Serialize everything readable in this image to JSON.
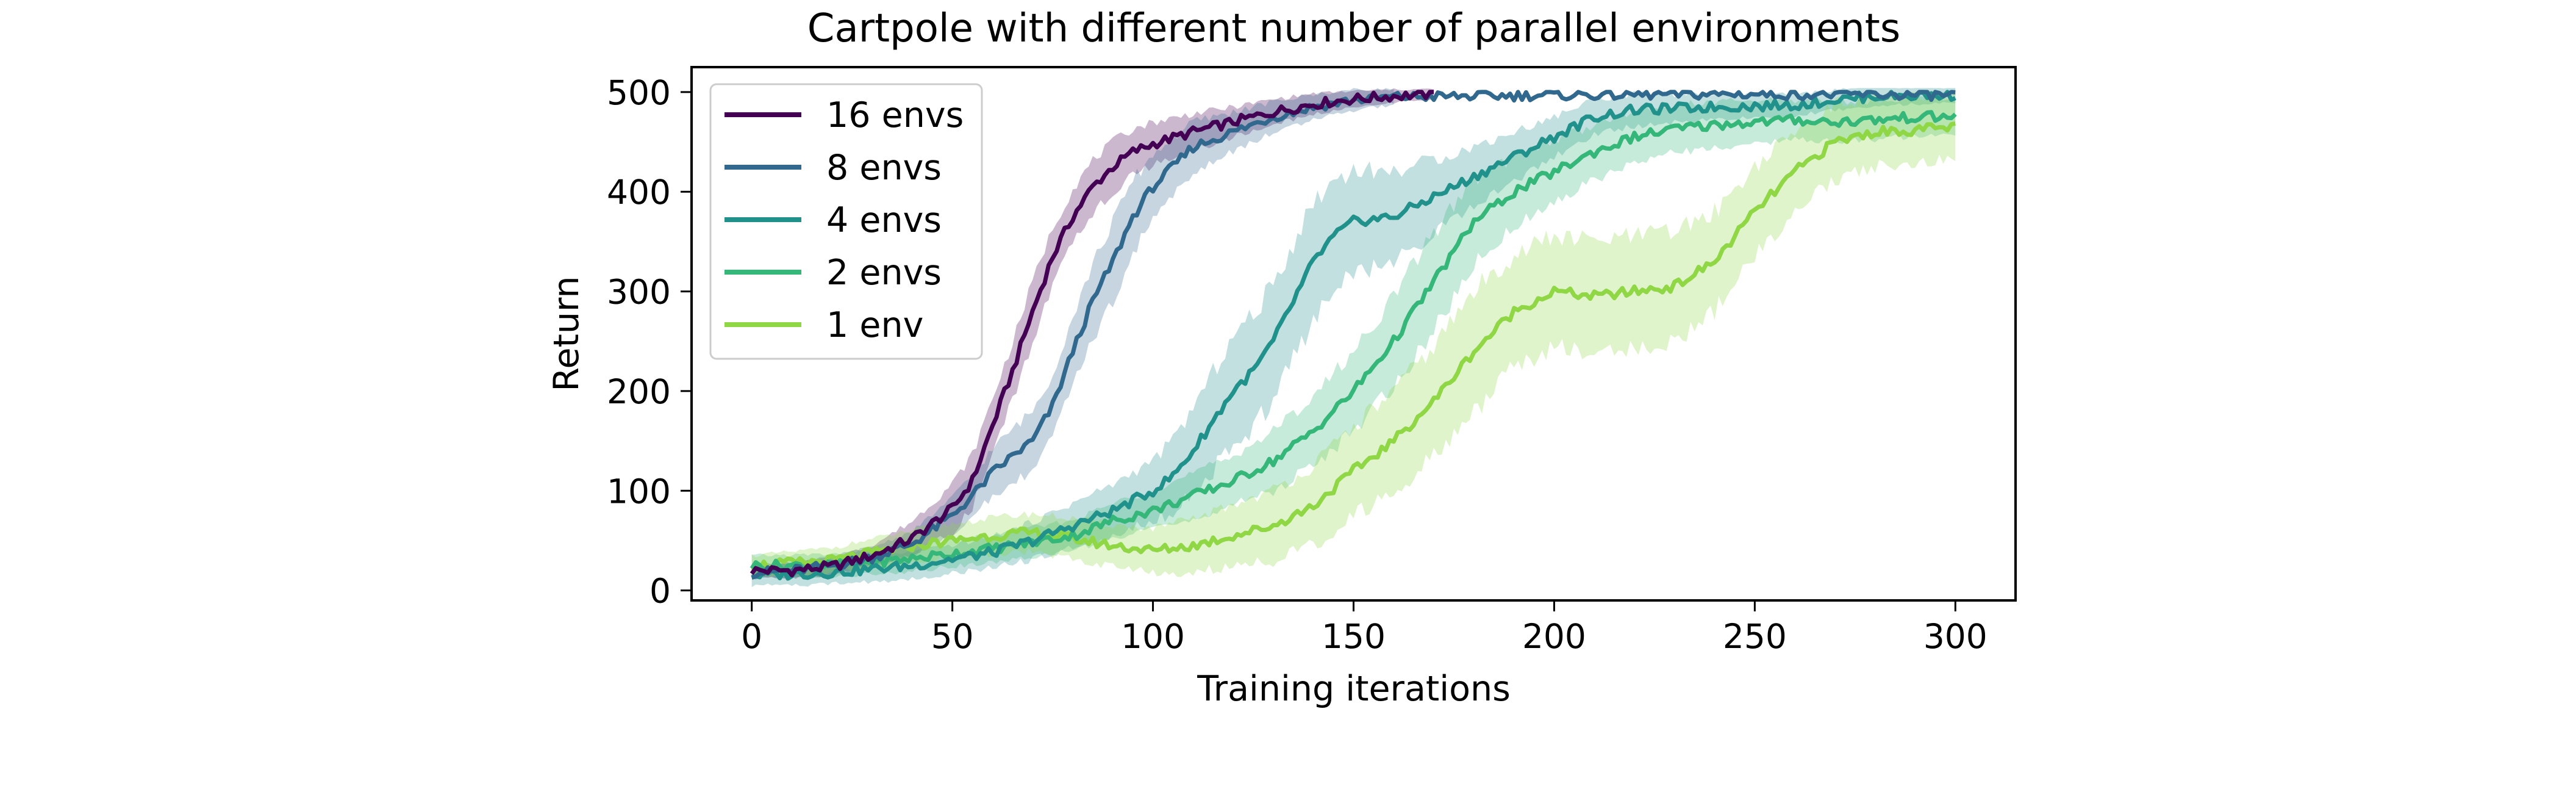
{
  "chart_data": {
    "type": "line",
    "title": "Cartpole with different number of parallel environments",
    "xlabel": "Training iterations",
    "ylabel": "Return",
    "xlim": [
      -15,
      315
    ],
    "ylim": [
      -10,
      525
    ],
    "xticks": [
      0,
      50,
      100,
      150,
      200,
      250,
      300
    ],
    "yticks": [
      0,
      100,
      200,
      300,
      400,
      500
    ],
    "grid": false,
    "legend_position": "upper-left",
    "series": [
      {
        "name": "16 envs",
        "color": "#440154",
        "band": true,
        "line_end": 170,
        "band_end": 170,
        "points": [
          [
            0,
            20
          ],
          [
            10,
            20
          ],
          [
            20,
            24
          ],
          [
            30,
            35
          ],
          [
            40,
            52
          ],
          [
            50,
            82
          ],
          [
            55,
            110
          ],
          [
            60,
            165
          ],
          [
            65,
            220
          ],
          [
            70,
            280
          ],
          [
            75,
            335
          ],
          [
            80,
            375
          ],
          [
            85,
            405
          ],
          [
            90,
            425
          ],
          [
            95,
            440
          ],
          [
            100,
            448
          ],
          [
            110,
            460
          ],
          [
            120,
            470
          ],
          [
            130,
            480
          ],
          [
            140,
            488
          ],
          [
            150,
            493
          ],
          [
            160,
            496
          ],
          [
            170,
            498
          ]
        ],
        "spread": [
          [
            0,
            6
          ],
          [
            30,
            10
          ],
          [
            50,
            25
          ],
          [
            70,
            30
          ],
          [
            90,
            25
          ],
          [
            120,
            15
          ],
          [
            150,
            8
          ],
          [
            170,
            5
          ]
        ]
      },
      {
        "name": "8 envs",
        "color": "#31688e",
        "band": true,
        "line_end": 300,
        "band_end": 160,
        "points": [
          [
            0,
            18
          ],
          [
            10,
            20
          ],
          [
            20,
            25
          ],
          [
            30,
            33
          ],
          [
            40,
            47
          ],
          [
            50,
            75
          ],
          [
            55,
            95
          ],
          [
            60,
            118
          ],
          [
            65,
            135
          ],
          [
            70,
            150
          ],
          [
            75,
            185
          ],
          [
            80,
            240
          ],
          [
            85,
            290
          ],
          [
            90,
            330
          ],
          [
            95,
            375
          ],
          [
            100,
            405
          ],
          [
            105,
            425
          ],
          [
            110,
            445
          ],
          [
            120,
            460
          ],
          [
            130,
            475
          ],
          [
            140,
            485
          ],
          [
            150,
            492
          ],
          [
            160,
            495
          ],
          [
            200,
            497
          ],
          [
            250,
            498
          ],
          [
            300,
            497
          ]
        ],
        "spread": [
          [
            0,
            6
          ],
          [
            40,
            12
          ],
          [
            70,
            30
          ],
          [
            90,
            40
          ],
          [
            110,
            25
          ],
          [
            130,
            15
          ],
          [
            160,
            8
          ]
        ]
      },
      {
        "name": "4 envs",
        "color": "#21918c",
        "band": true,
        "line_end": 300,
        "band_end": 300,
        "points": [
          [
            0,
            15
          ],
          [
            20,
            18
          ],
          [
            40,
            25
          ],
          [
            60,
            38
          ],
          [
            70,
            50
          ],
          [
            80,
            65
          ],
          [
            90,
            80
          ],
          [
            100,
            100
          ],
          [
            105,
            115
          ],
          [
            110,
            140
          ],
          [
            115,
            170
          ],
          [
            120,
            200
          ],
          [
            125,
            220
          ],
          [
            130,
            250
          ],
          [
            135,
            290
          ],
          [
            140,
            330
          ],
          [
            145,
            355
          ],
          [
            150,
            370
          ],
          [
            160,
            375
          ],
          [
            170,
            395
          ],
          [
            180,
            415
          ],
          [
            190,
            435
          ],
          [
            200,
            455
          ],
          [
            210,
            475
          ],
          [
            220,
            482
          ],
          [
            240,
            485
          ],
          [
            260,
            487
          ],
          [
            270,
            492
          ],
          [
            280,
            496
          ],
          [
            300,
            497
          ]
        ],
        "spread": [
          [
            0,
            10
          ],
          [
            60,
            15
          ],
          [
            100,
            30
          ],
          [
            120,
            55
          ],
          [
            140,
            60
          ],
          [
            160,
            45
          ],
          [
            180,
            30
          ],
          [
            200,
            20
          ],
          [
            240,
            12
          ],
          [
            300,
            8
          ]
        ]
      },
      {
        "name": "2 envs",
        "color": "#35b779",
        "band": true,
        "line_end": 300,
        "band_end": 300,
        "points": [
          [
            0,
            25
          ],
          [
            20,
            25
          ],
          [
            40,
            32
          ],
          [
            60,
            42
          ],
          [
            80,
            55
          ],
          [
            90,
            70
          ],
          [
            100,
            80
          ],
          [
            110,
            95
          ],
          [
            120,
            110
          ],
          [
            130,
            130
          ],
          [
            140,
            160
          ],
          [
            150,
            200
          ],
          [
            160,
            250
          ],
          [
            170,
            310
          ],
          [
            180,
            370
          ],
          [
            190,
            400
          ],
          [
            200,
            420
          ],
          [
            210,
            440
          ],
          [
            220,
            455
          ],
          [
            230,
            463
          ],
          [
            240,
            467
          ],
          [
            250,
            470
          ],
          [
            260,
            472
          ],
          [
            270,
            470
          ],
          [
            280,
            472
          ],
          [
            290,
            475
          ],
          [
            300,
            475
          ]
        ],
        "spread": [
          [
            0,
            10
          ],
          [
            80,
            15
          ],
          [
            120,
            25
          ],
          [
            150,
            40
          ],
          [
            170,
            50
          ],
          [
            190,
            35
          ],
          [
            220,
            25
          ],
          [
            260,
            20
          ],
          [
            300,
            18
          ]
        ]
      },
      {
        "name": "1 env",
        "color": "#8fd744",
        "band": true,
        "line_end": 300,
        "band_end": 300,
        "points": [
          [
            0,
            25
          ],
          [
            20,
            30
          ],
          [
            40,
            45
          ],
          [
            60,
            55
          ],
          [
            70,
            58
          ],
          [
            80,
            52
          ],
          [
            90,
            45
          ],
          [
            100,
            40
          ],
          [
            110,
            45
          ],
          [
            120,
            55
          ],
          [
            130,
            65
          ],
          [
            140,
            85
          ],
          [
            150,
            120
          ],
          [
            160,
            150
          ],
          [
            170,
            190
          ],
          [
            180,
            240
          ],
          [
            190,
            280
          ],
          [
            200,
            300
          ],
          [
            210,
            295
          ],
          [
            220,
            300
          ],
          [
            230,
            305
          ],
          [
            240,
            330
          ],
          [
            250,
            380
          ],
          [
            260,
            420
          ],
          [
            270,
            450
          ],
          [
            280,
            460
          ],
          [
            290,
            462
          ],
          [
            300,
            465
          ]
        ],
        "spread": [
          [
            0,
            10
          ],
          [
            60,
            18
          ],
          [
            100,
            22
          ],
          [
            140,
            40
          ],
          [
            180,
            60
          ],
          [
            200,
            55
          ],
          [
            230,
            55
          ],
          [
            260,
            40
          ],
          [
            300,
            30
          ]
        ]
      }
    ]
  }
}
